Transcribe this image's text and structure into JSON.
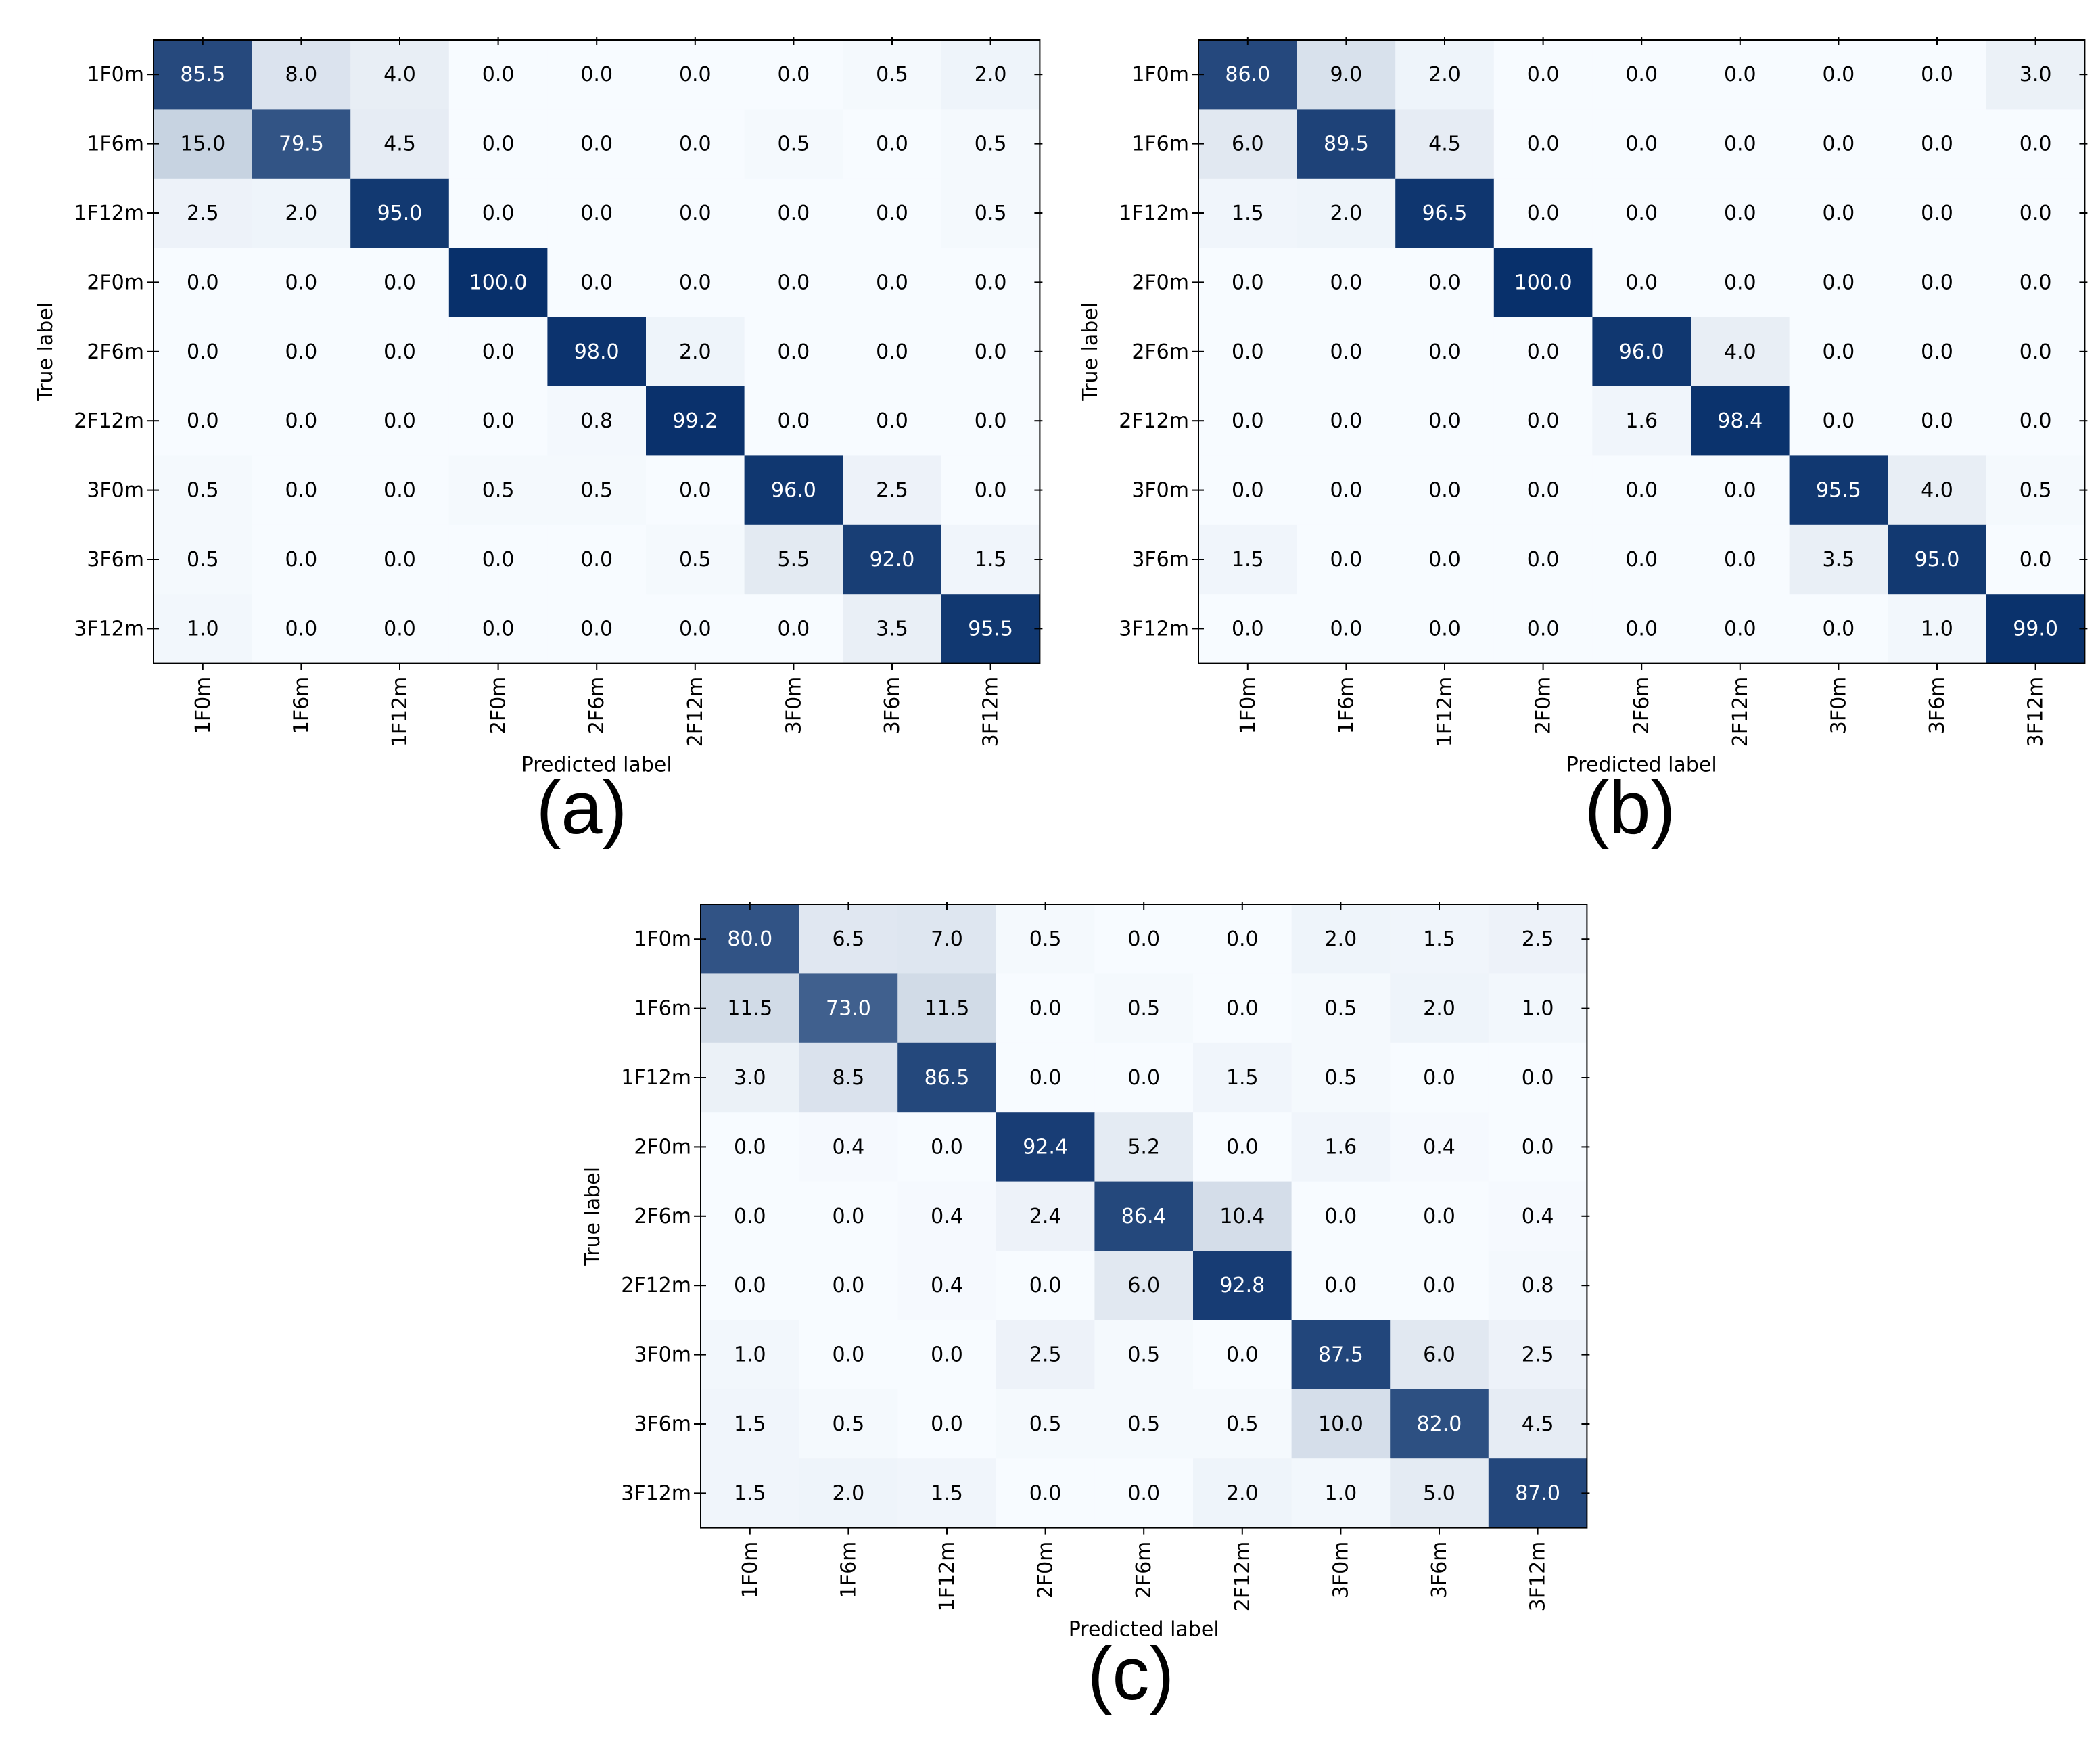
{
  "chart_data": [
    {
      "type": "heatmap",
      "panel_label": "(a)",
      "xlabel": "Predicted label",
      "ylabel": "True label",
      "row_labels": [
        "1F0m",
        "1F6m",
        "1F12m",
        "2F0m",
        "2F6m",
        "2F12m",
        "3F0m",
        "3F6m",
        "3F12m"
      ],
      "col_labels": [
        "1F0m",
        "1F6m",
        "1F12m",
        "2F0m",
        "2F6m",
        "2F12m",
        "3F0m",
        "3F6m",
        "3F12m"
      ],
      "values": [
        [
          "85.5",
          "8.0",
          "4.0",
          "0.0",
          "0.0",
          "0.0",
          "0.0",
          "0.5",
          "2.0"
        ],
        [
          "15.0",
          "79.5",
          "4.5",
          "0.0",
          "0.0",
          "0.0",
          "0.5",
          "0.0",
          "0.5"
        ],
        [
          "2.5",
          "2.0",
          "95.0",
          "0.0",
          "0.0",
          "0.0",
          "0.0",
          "0.0",
          "0.5"
        ],
        [
          "0.0",
          "0.0",
          "0.0",
          "100.0",
          "0.0",
          "0.0",
          "0.0",
          "0.0",
          "0.0"
        ],
        [
          "0.0",
          "0.0",
          "0.0",
          "0.0",
          "98.0",
          "2.0",
          "0.0",
          "0.0",
          "0.0"
        ],
        [
          "0.0",
          "0.0",
          "0.0",
          "0.0",
          "0.8",
          "99.2",
          "0.0",
          "0.0",
          "0.0"
        ],
        [
          "0.5",
          "0.0",
          "0.0",
          "0.5",
          "0.5",
          "0.0",
          "96.0",
          "2.5",
          "0.0"
        ],
        [
          "0.5",
          "0.0",
          "0.0",
          "0.0",
          "0.0",
          "0.5",
          "5.5",
          "92.0",
          "1.5"
        ],
        [
          "1.0",
          "0.0",
          "0.0",
          "0.0",
          "0.0",
          "0.0",
          "0.0",
          "3.5",
          "95.5"
        ]
      ],
      "colormap": {
        "low": "#f7fbff",
        "high": "#08306b"
      },
      "value_range": [
        0,
        100
      ]
    },
    {
      "type": "heatmap",
      "panel_label": "(b)",
      "xlabel": "Predicted label",
      "ylabel": "True label",
      "row_labels": [
        "1F0m",
        "1F6m",
        "1F12m",
        "2F0m",
        "2F6m",
        "2F12m",
        "3F0m",
        "3F6m",
        "3F12m"
      ],
      "col_labels": [
        "1F0m",
        "1F6m",
        "1F12m",
        "2F0m",
        "2F6m",
        "2F12m",
        "3F0m",
        "3F6m",
        "3F12m"
      ],
      "values": [
        [
          "86.0",
          "9.0",
          "2.0",
          "0.0",
          "0.0",
          "0.0",
          "0.0",
          "0.0",
          "3.0"
        ],
        [
          "6.0",
          "89.5",
          "4.5",
          "0.0",
          "0.0",
          "0.0",
          "0.0",
          "0.0",
          "0.0"
        ],
        [
          "1.5",
          "2.0",
          "96.5",
          "0.0",
          "0.0",
          "0.0",
          "0.0",
          "0.0",
          "0.0"
        ],
        [
          "0.0",
          "0.0",
          "0.0",
          "100.0",
          "0.0",
          "0.0",
          "0.0",
          "0.0",
          "0.0"
        ],
        [
          "0.0",
          "0.0",
          "0.0",
          "0.0",
          "96.0",
          "4.0",
          "0.0",
          "0.0",
          "0.0"
        ],
        [
          "0.0",
          "0.0",
          "0.0",
          "0.0",
          "1.6",
          "98.4",
          "0.0",
          "0.0",
          "0.0"
        ],
        [
          "0.0",
          "0.0",
          "0.0",
          "0.0",
          "0.0",
          "0.0",
          "95.5",
          "4.0",
          "0.5"
        ],
        [
          "1.5",
          "0.0",
          "0.0",
          "0.0",
          "0.0",
          "0.0",
          "3.5",
          "95.0",
          "0.0"
        ],
        [
          "0.0",
          "0.0",
          "0.0",
          "0.0",
          "0.0",
          "0.0",
          "0.0",
          "1.0",
          "99.0"
        ]
      ],
      "colormap": {
        "low": "#f7fbff",
        "high": "#08306b"
      },
      "value_range": [
        0,
        100
      ]
    },
    {
      "type": "heatmap",
      "panel_label": "(c)",
      "xlabel": "Predicted label",
      "ylabel": "True label",
      "row_labels": [
        "1F0m",
        "1F6m",
        "1F12m",
        "2F0m",
        "2F6m",
        "2F12m",
        "3F0m",
        "3F6m",
        "3F12m"
      ],
      "col_labels": [
        "1F0m",
        "1F6m",
        "1F12m",
        "2F0m",
        "2F6m",
        "2F12m",
        "3F0m",
        "3F6m",
        "3F12m"
      ],
      "values": [
        [
          "80.0",
          "6.5",
          "7.0",
          "0.5",
          "0.0",
          "0.0",
          "2.0",
          "1.5",
          "2.5"
        ],
        [
          "11.5",
          "73.0",
          "11.5",
          "0.0",
          "0.5",
          "0.0",
          "0.5",
          "2.0",
          "1.0"
        ],
        [
          "3.0",
          "8.5",
          "86.5",
          "0.0",
          "0.0",
          "1.5",
          "0.5",
          "0.0",
          "0.0"
        ],
        [
          "0.0",
          "0.4",
          "0.0",
          "92.4",
          "5.2",
          "0.0",
          "1.6",
          "0.4",
          "0.0"
        ],
        [
          "0.0",
          "0.0",
          "0.4",
          "2.4",
          "86.4",
          "10.4",
          "0.0",
          "0.0",
          "0.4"
        ],
        [
          "0.0",
          "0.0",
          "0.4",
          "0.0",
          "6.0",
          "92.8",
          "0.0",
          "0.0",
          "0.8"
        ],
        [
          "1.0",
          "0.0",
          "0.0",
          "2.5",
          "0.5",
          "0.0",
          "87.5",
          "6.0",
          "2.5"
        ],
        [
          "1.5",
          "0.5",
          "0.0",
          "0.5",
          "0.5",
          "0.5",
          "10.0",
          "82.0",
          "4.5"
        ],
        [
          "1.5",
          "2.0",
          "1.5",
          "0.0",
          "0.0",
          "2.0",
          "1.0",
          "5.0",
          "87.0"
        ]
      ],
      "colormap": {
        "low": "#f7fbff",
        "high": "#08306b"
      },
      "value_range": [
        0,
        100
      ]
    }
  ]
}
